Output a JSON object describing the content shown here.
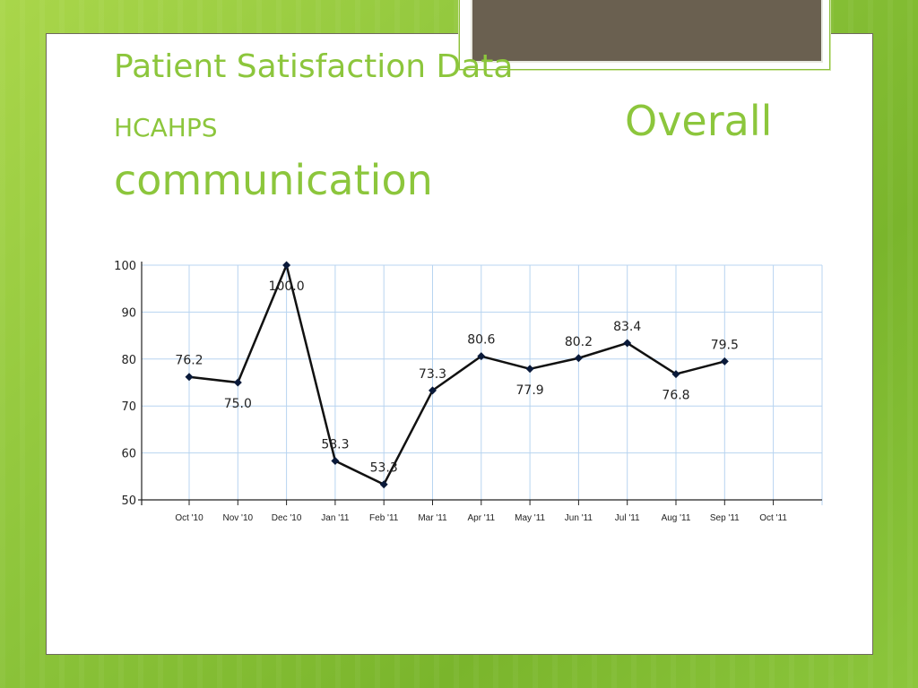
{
  "slide": {
    "title_line1": "Patient Satisfaction Data",
    "title_hcahps": "HCAHPS",
    "title_overall": "Overall",
    "title_communication": "communication"
  },
  "colors": {
    "accent": "#8cc63c",
    "line": "#111111",
    "grid": "#b8d4f0",
    "axis": "#222222"
  },
  "chart_data": {
    "type": "line",
    "categories": [
      "Oct '10",
      "Nov '10",
      "Dec '10",
      "Jan '11",
      "Feb '11",
      "Mar '11",
      "Apr '11",
      "May '11",
      "Jun '11",
      "Jul '11",
      "Aug '11",
      "Sep '11",
      "Oct '11"
    ],
    "series": [
      {
        "values": [
          76.2,
          75.0,
          100.0,
          58.3,
          53.3,
          73.3,
          80.6,
          77.9,
          80.2,
          83.4,
          76.8,
          79.5,
          null
        ]
      }
    ],
    "data_labels": [
      "76.2",
      "75.0",
      "100.0",
      "58.3",
      "53.3",
      "73.3",
      "80.6",
      "77.9",
      "80.2",
      "83.4",
      "76.8",
      "79.5"
    ],
    "label_positions": [
      "above",
      "below",
      "below",
      "above",
      "above",
      "above",
      "above",
      "below",
      "above",
      "above",
      "below",
      "above"
    ],
    "yticks": [
      "100",
      "90",
      "80",
      "70",
      "60",
      "50"
    ],
    "ylim": [
      50,
      100
    ],
    "grid": true,
    "xlabel": "",
    "ylabel": ""
  }
}
